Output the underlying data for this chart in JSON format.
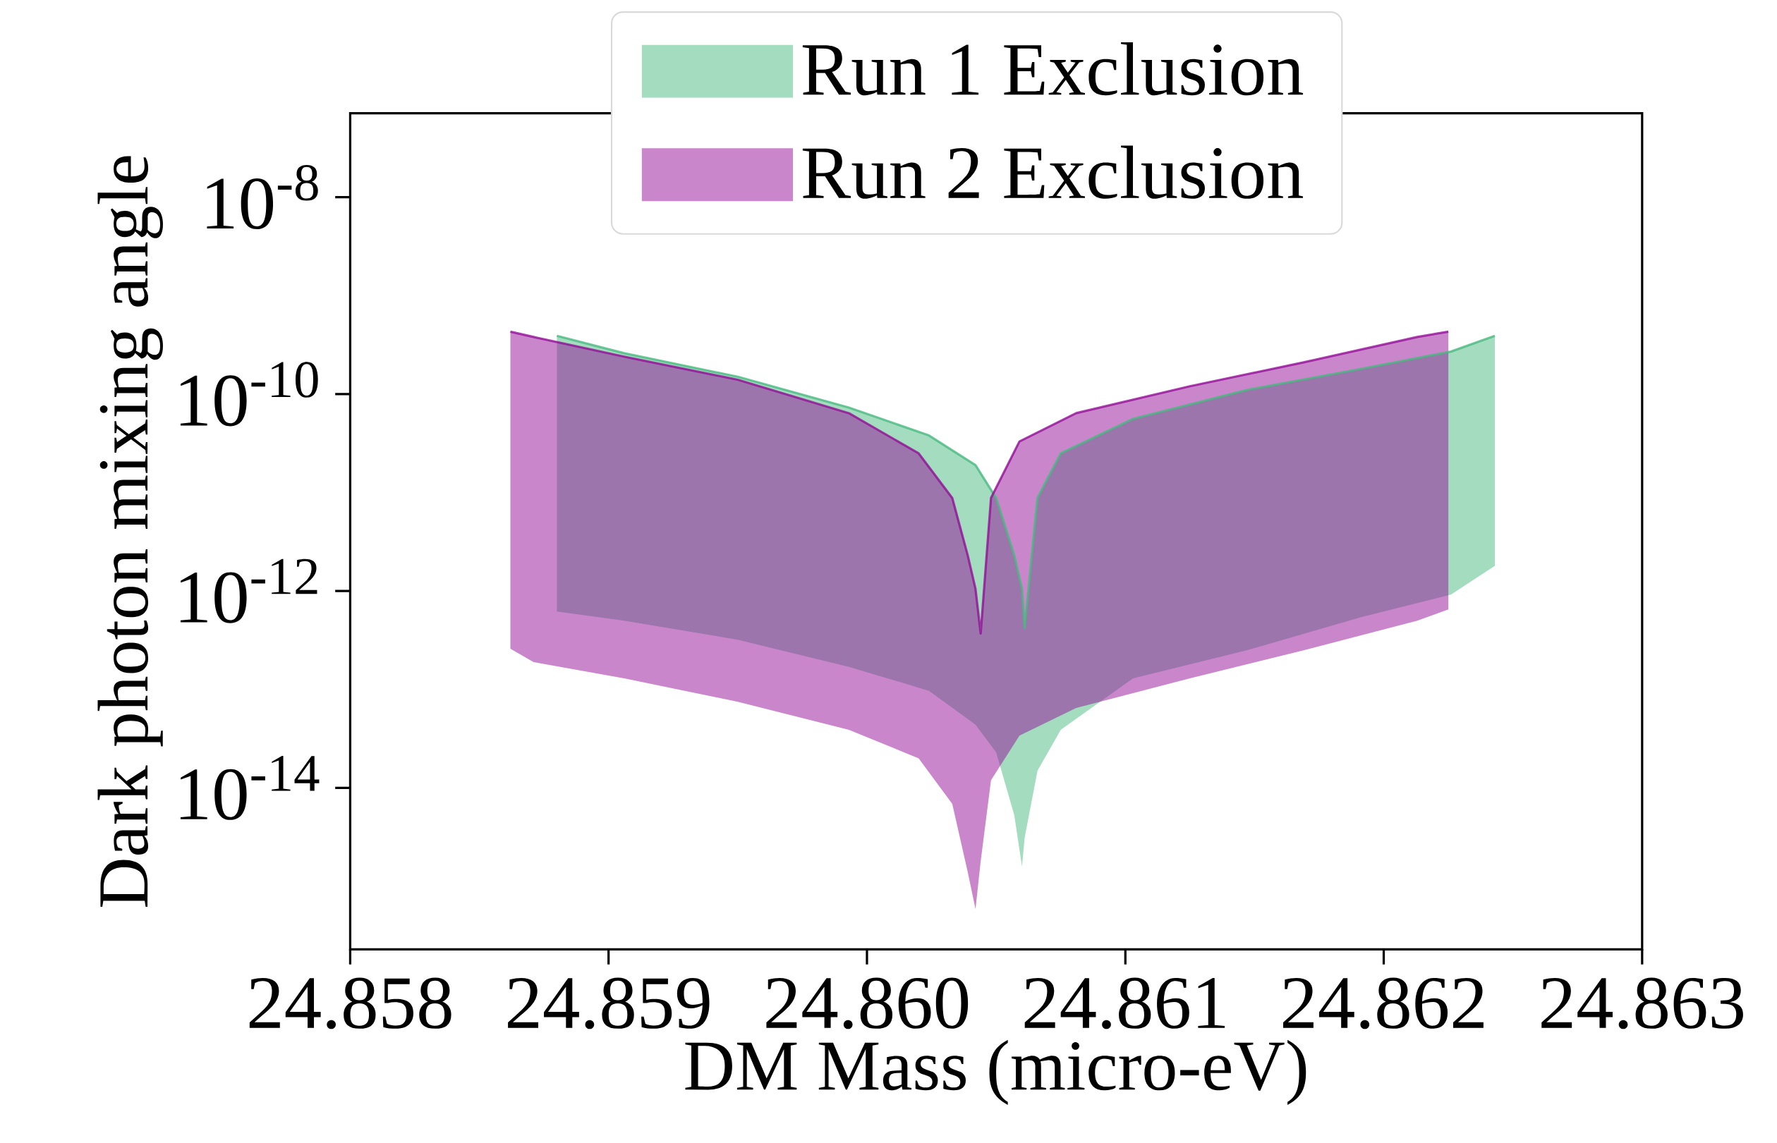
{
  "chart_data": {
    "type": "line",
    "xlabel": "DM Mass (micro-eV)",
    "ylabel": "Dark photon mixing angle",
    "log": "y",
    "legend": "top",
    "xlim": [
      24.858,
      24.863
    ],
    "ylim": [
      2.3e-16,
      7.1e-08
    ],
    "xticks": [
      {
        "value": 24.858,
        "label": "24.858"
      },
      {
        "value": 24.859,
        "label": "24.859"
      },
      {
        "value": 24.86,
        "label": "24.860"
      },
      {
        "value": 24.861,
        "label": "24.861"
      },
      {
        "value": 24.862,
        "label": "24.862"
      },
      {
        "value": 24.863,
        "label": "24.863"
      }
    ],
    "yticks": [
      {
        "value": 1e-08,
        "label": "10$^{-8}$"
      },
      {
        "value": 1e-10,
        "label": "10$^{-10}$"
      },
      {
        "value": 1e-12,
        "label": "10$^{-12}$"
      },
      {
        "value": 1e-14,
        "label": "10$^{-14}$"
      }
    ],
    "series": [
      {
        "name": "Run 1 Exclusion",
        "color": "#47b97f",
        "x": [
          24.8588,
          24.85906,
          24.8595,
          24.85993,
          24.86024,
          24.86042,
          24.8605,
          24.86057,
          24.8606,
          24.86061,
          24.86066,
          24.86075,
          24.86103,
          24.86147,
          24.86191,
          24.86226,
          24.86243
        ],
        "values": [
          3.9e-10,
          2.6e-10,
          1.5e-10,
          7.3e-11,
          3.8e-11,
          1.9e-11,
          8.8e-12,
          2.3e-12,
          1.05e-12,
          4.2e-13,
          8.8e-12,
          2.5e-11,
          5.6e-11,
          1.1e-10,
          1.8e-10,
          2.7e-10,
          3.9e-10
        ],
        "upper": [
          3.9e-10,
          2.6e-10,
          1.5e-10,
          7.3e-11,
          3.8e-11,
          1.9e-11,
          8.8e-12,
          2.3e-12,
          1.05e-12,
          4.2e-13,
          8.8e-12,
          2.5e-11,
          5.6e-11,
          1.1e-10,
          1.8e-10,
          2.7e-10,
          3.9e-10
        ],
        "lower": [
          6.2e-13,
          5e-13,
          3.2e-13,
          1.7e-13,
          9.7e-14,
          4.4e-14,
          2.3e-14,
          5.3e-15,
          1.6e-15,
          3.1e-15,
          1.5e-14,
          3.9e-14,
          1.3e-13,
          2.5e-13,
          5.4e-13,
          9.2e-13,
          1.8e-12
        ]
      },
      {
        "name": "Run 2 Exclusion",
        "color": "#930d97",
        "x": [
          24.85862,
          24.85871,
          24.85906,
          24.8595,
          24.85993,
          24.8602,
          24.86033,
          24.86039,
          24.86042,
          24.86044,
          24.86048,
          24.86059,
          24.86081,
          24.86125,
          24.86169,
          24.86213,
          24.86225
        ],
        "values": [
          4.3e-10,
          3.8e-10,
          2.4e-10,
          1.4e-10,
          6.4e-11,
          2.5e-11,
          8.8e-12,
          2.3e-12,
          1.05e-12,
          3.7e-13,
          8.8e-12,
          3.3e-11,
          6.4e-11,
          1.2e-10,
          2.1e-10,
          3.8e-10,
          4.3e-10
        ],
        "upper": [
          4.3e-10,
          3.8e-10,
          2.4e-10,
          1.4e-10,
          6.4e-11,
          2.5e-11,
          8.8e-12,
          2.3e-12,
          1.05e-12,
          3.7e-13,
          8.8e-12,
          3.3e-11,
          6.4e-11,
          1.2e-10,
          2.1e-10,
          3.8e-10,
          4.3e-10
        ],
        "lower": [
          2.6e-13,
          1.9e-13,
          1.3e-13,
          7.5e-14,
          3.9e-14,
          2e-14,
          6.9e-15,
          1.4e-15,
          5.9e-16,
          1.8e-15,
          1.2e-14,
          3.4e-14,
          6.5e-14,
          1.3e-13,
          2.5e-13,
          5e-13,
          6.5e-13
        ]
      }
    ]
  }
}
